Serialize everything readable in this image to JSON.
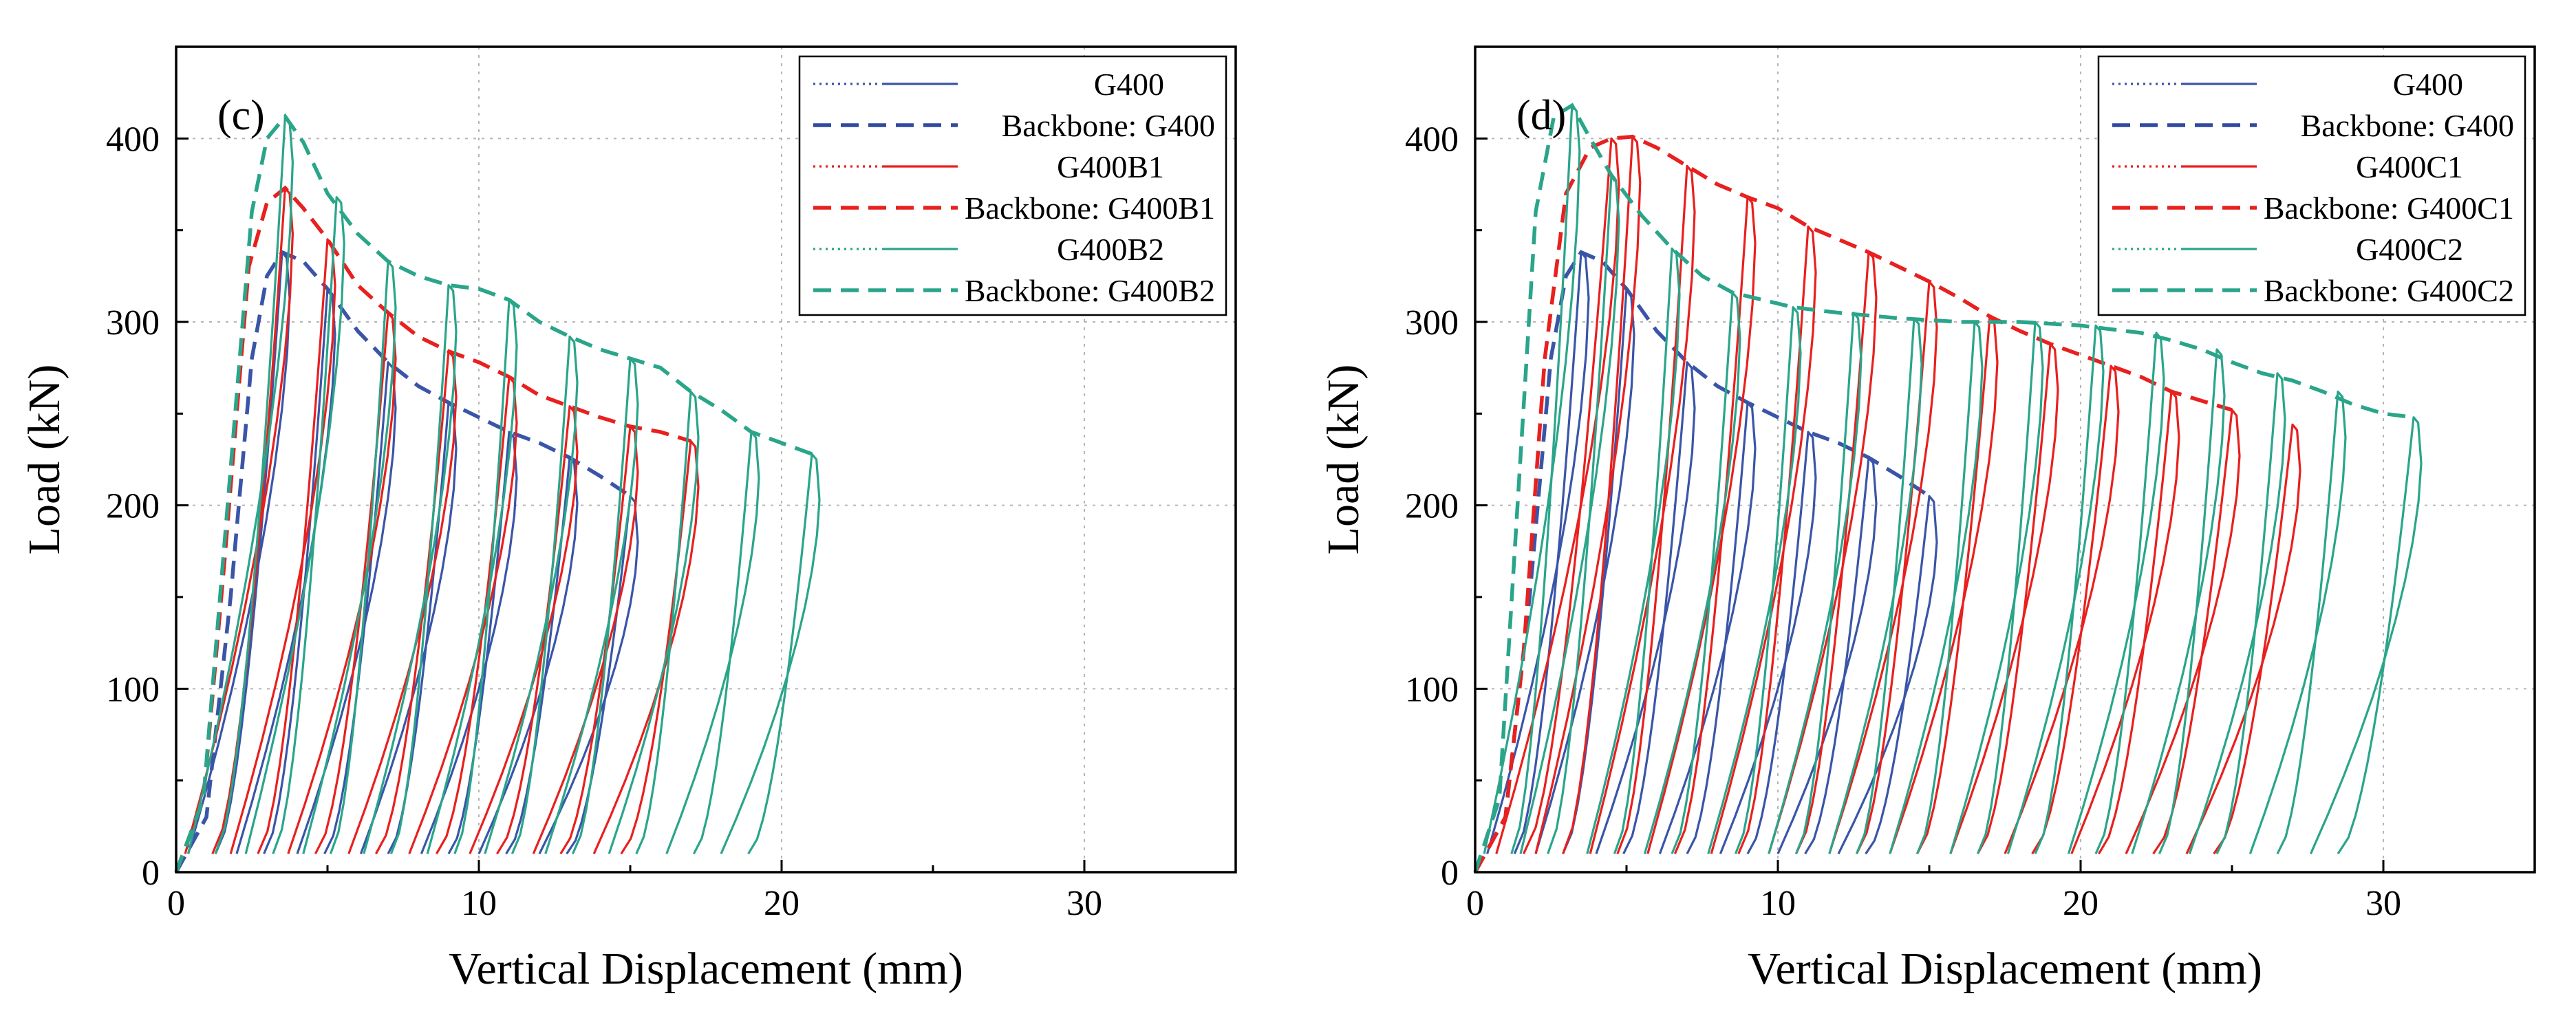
{
  "chart_data": [
    {
      "type": "line",
      "panel_label": "(c)",
      "xlabel": "Vertical Displacement (mm)",
      "ylabel": "Load (kN)",
      "xlim": [
        0,
        35
      ],
      "ylim": [
        0,
        450
      ],
      "xticks": [
        0,
        10,
        20,
        30
      ],
      "yticks": [
        0,
        100,
        200,
        300,
        400
      ],
      "grid": true,
      "legend_position": "top-right",
      "legend": [
        {
          "label": "G400",
          "style": "dotted+solid",
          "color": "#3a55a8"
        },
        {
          "label": "Backbone: G400",
          "style": "dashed",
          "color": "#2f4a9e"
        },
        {
          "label": "G400B1",
          "style": "dotted+solid",
          "color": "#e8201e"
        },
        {
          "label": "Backbone: G400B1",
          "style": "dashed",
          "color": "#e8201e"
        },
        {
          "label": "G400B2",
          "style": "dotted+solid",
          "color": "#2aa58a"
        },
        {
          "label": "Backbone: G400B2",
          "style": "dashed",
          "color": "#2aa58a"
        }
      ],
      "series": [
        {
          "name": "G400",
          "color": "#3a55a8",
          "backbone": [
            [
              0,
              0
            ],
            [
              1.0,
              30
            ],
            [
              1.8,
              150
            ],
            [
              2.5,
              280
            ],
            [
              3.0,
              325
            ],
            [
              3.5,
              338
            ],
            [
              4.2,
              333
            ],
            [
              5.0,
              318
            ],
            [
              6.0,
              295
            ],
            [
              7.0,
              278
            ],
            [
              8.0,
              265
            ],
            [
              9.0,
              256
            ],
            [
              10.0,
              248
            ],
            [
              11.0,
              240
            ],
            [
              12.0,
              234
            ],
            [
              13.0,
              226
            ],
            [
              14.0,
              216
            ],
            [
              15.0,
              205
            ]
          ],
          "loops": [
            [
              1.3,
              3.5,
              338
            ],
            [
              2.9,
              5.0,
              318
            ],
            [
              4.9,
              7.0,
              278
            ],
            [
              7.0,
              9.0,
              256
            ],
            [
              9.0,
              11.0,
              240
            ],
            [
              10.9,
              13.0,
              226
            ],
            [
              12.9,
              15.0,
              205
            ]
          ]
        },
        {
          "name": "G400B1",
          "color": "#e8201e",
          "backbone": [
            [
              0,
              0
            ],
            [
              0.9,
              40
            ],
            [
              1.6,
              170
            ],
            [
              2.4,
              330
            ],
            [
              3.0,
              365
            ],
            [
              3.6,
              373
            ],
            [
              4.2,
              362
            ],
            [
              5.0,
              345
            ],
            [
              6.0,
              320
            ],
            [
              7.0,
              305
            ],
            [
              8.0,
              292
            ],
            [
              9.0,
              284
            ],
            [
              10.0,
              278
            ],
            [
              11.0,
              270
            ],
            [
              12.0,
              260
            ],
            [
              13.0,
              254
            ],
            [
              14.0,
              248
            ],
            [
              15.0,
              243
            ],
            [
              16.0,
              240
            ],
            [
              17.0,
              235
            ]
          ],
          "loops": [
            [
              1.2,
              3.6,
              373
            ],
            [
              2.7,
              5.0,
              345
            ],
            [
              4.6,
              7.0,
              305
            ],
            [
              6.6,
              9.0,
              284
            ],
            [
              8.6,
              11.0,
              270
            ],
            [
              10.6,
              13.0,
              254
            ],
            [
              12.7,
              15.0,
              243
            ],
            [
              14.7,
              17.0,
              235
            ]
          ]
        },
        {
          "name": "G400B2",
          "color": "#2aa58a",
          "backbone": [
            [
              0,
              0
            ],
            [
              0.9,
              40
            ],
            [
              1.7,
              200
            ],
            [
              2.5,
              360
            ],
            [
              3.0,
              400
            ],
            [
              3.6,
              412
            ],
            [
              4.2,
              398
            ],
            [
              5.0,
              370
            ],
            [
              6.0,
              348
            ],
            [
              7.0,
              333
            ],
            [
              8.0,
              325
            ],
            [
              9.0,
              320
            ],
            [
              10.0,
              318
            ],
            [
              11.0,
              312
            ],
            [
              12.0,
              300
            ],
            [
              13.0,
              292
            ],
            [
              14.0,
              285
            ],
            [
              15.0,
              280
            ],
            [
              16.0,
              275
            ],
            [
              17.0,
              262
            ],
            [
              18.0,
              252
            ],
            [
              19.0,
              240
            ],
            [
              20.0,
              234
            ],
            [
              21.0,
              228
            ]
          ],
          "loops": [
            [
              1.3,
              3.6,
              412
            ],
            [
              3.2,
              5.3,
              368
            ],
            [
              5.1,
              7.0,
              333
            ],
            [
              7.1,
              9.0,
              320
            ],
            [
              9.2,
              11.0,
              312
            ],
            [
              11.1,
              13.0,
              292
            ],
            [
              13.1,
              15.0,
              280
            ],
            [
              15.2,
              17.0,
              262
            ],
            [
              17.1,
              19.0,
              240
            ],
            [
              18.9,
              21.0,
              228
            ]
          ]
        }
      ]
    },
    {
      "type": "line",
      "panel_label": "(d)",
      "xlabel": "Vertical Displacement (mm)",
      "ylabel": "Load (kN)",
      "xlim": [
        0,
        35
      ],
      "ylim": [
        0,
        450
      ],
      "xticks": [
        0,
        10,
        20,
        30
      ],
      "yticks": [
        0,
        100,
        200,
        300,
        400
      ],
      "grid": true,
      "legend_position": "top-right",
      "legend": [
        {
          "label": "G400",
          "style": "dotted+solid",
          "color": "#3a55a8"
        },
        {
          "label": "Backbone: G400",
          "style": "dashed",
          "color": "#2f4a9e"
        },
        {
          "label": "G400C1",
          "style": "dotted+solid",
          "color": "#e8201e"
        },
        {
          "label": "Backbone: G400C1",
          "style": "dashed",
          "color": "#e8201e"
        },
        {
          "label": "G400C2",
          "style": "dotted+solid",
          "color": "#2aa58a"
        },
        {
          "label": "Backbone: G400C2",
          "style": "dashed",
          "color": "#2aa58a"
        }
      ],
      "series": [
        {
          "name": "G400",
          "color": "#3a55a8",
          "backbone": [
            [
              0,
              0
            ],
            [
              1.0,
              30
            ],
            [
              1.8,
              150
            ],
            [
              2.5,
              280
            ],
            [
              3.0,
              325
            ],
            [
              3.5,
              338
            ],
            [
              4.2,
              333
            ],
            [
              5.0,
              318
            ],
            [
              6.0,
              295
            ],
            [
              7.0,
              278
            ],
            [
              8.0,
              265
            ],
            [
              9.0,
              256
            ],
            [
              10.0,
              248
            ],
            [
              11.0,
              240
            ],
            [
              12.0,
              234
            ],
            [
              13.0,
              226
            ],
            [
              14.0,
              216
            ],
            [
              15.0,
              205
            ]
          ],
          "loops": [
            [
              1.3,
              3.5,
              338
            ],
            [
              2.9,
              5.0,
              318
            ],
            [
              4.9,
              7.0,
              278
            ],
            [
              7.0,
              9.0,
              256
            ],
            [
              9.0,
              11.0,
              240
            ],
            [
              10.9,
              13.0,
              226
            ],
            [
              12.9,
              15.0,
              205
            ]
          ]
        },
        {
          "name": "G400C1",
          "color": "#e8201e",
          "backbone": [
            [
              0,
              0
            ],
            [
              1.0,
              30
            ],
            [
              1.6,
              120
            ],
            [
              2.3,
              280
            ],
            [
              3.0,
              370
            ],
            [
              3.8,
              395
            ],
            [
              4.5,
              400
            ],
            [
              5.2,
              401
            ],
            [
              6.0,
              395
            ],
            [
              7.0,
              385
            ],
            [
              8.0,
              375
            ],
            [
              9.0,
              368
            ],
            [
              10.0,
              362
            ],
            [
              11.0,
              352
            ],
            [
              12.0,
              345
            ],
            [
              13.0,
              338
            ],
            [
              14.0,
              330
            ],
            [
              15.0,
              322
            ],
            [
              16.0,
              313
            ],
            [
              17.0,
              303
            ],
            [
              18.0,
              295
            ],
            [
              19.0,
              288
            ],
            [
              20.0,
              282
            ],
            [
              21.0,
              276
            ],
            [
              22.0,
              270
            ],
            [
              23.0,
              262
            ],
            [
              24.0,
              257
            ],
            [
              25.0,
              252
            ]
          ],
          "loops": [
            [
              1.6,
              4.5,
              400
            ],
            [
              2.9,
              5.2,
              401
            ],
            [
              4.7,
              7.0,
              385
            ],
            [
              6.6,
              9.0,
              368
            ],
            [
              8.7,
              11.0,
              352
            ],
            [
              10.6,
              13.0,
              338
            ],
            [
              12.6,
              15.0,
              322
            ],
            [
              14.6,
              17.0,
              303
            ],
            [
              16.6,
              19.0,
              288
            ],
            [
              18.4,
              21.0,
              276
            ],
            [
              20.6,
              23.0,
              262
            ],
            [
              22.4,
              25.0,
              252
            ],
            [
              24.4,
              27.0,
              244
            ]
          ]
        },
        {
          "name": "G400C2",
          "color": "#2aa58a",
          "backbone": [
            [
              0,
              0
            ],
            [
              0.8,
              40
            ],
            [
              1.4,
              200
            ],
            [
              2.0,
              360
            ],
            [
              2.6,
              412
            ],
            [
              3.2,
              418
            ],
            [
              3.8,
              400
            ],
            [
              4.5,
              380
            ],
            [
              5.5,
              358
            ],
            [
              6.5,
              340
            ],
            [
              7.5,
              325
            ],
            [
              8.5,
              316
            ],
            [
              9.5,
              312
            ],
            [
              10.5,
              308
            ],
            [
              12.0,
              305
            ],
            [
              14.0,
              302
            ],
            [
              16.0,
              300
            ],
            [
              18.0,
              300
            ],
            [
              20.0,
              298
            ],
            [
              22.0,
              294
            ],
            [
              23.0,
              290
            ],
            [
              24.0,
              285
            ],
            [
              25.0,
              278
            ],
            [
              26.0,
              272
            ],
            [
              27.0,
              268
            ],
            [
              28.0,
              262
            ],
            [
              29.0,
              255
            ],
            [
              30.0,
              250
            ],
            [
              31.0,
              248
            ]
          ],
          "loops": [
            [
              1.2,
              3.2,
              418
            ],
            [
              2.4,
              4.5,
              380
            ],
            [
              4.6,
              6.5,
              340
            ],
            [
              6.5,
              8.5,
              316
            ],
            [
              8.6,
              10.5,
              308
            ],
            [
              10.6,
              12.5,
              305
            ],
            [
              12.6,
              14.5,
              302
            ],
            [
              14.6,
              16.5,
              300
            ],
            [
              16.6,
              18.5,
              300
            ],
            [
              18.5,
              20.5,
              298
            ],
            [
              20.5,
              22.5,
              294
            ],
            [
              22.6,
              24.5,
              285
            ],
            [
              24.5,
              26.5,
              272
            ],
            [
              26.5,
              28.5,
              262
            ],
            [
              28.5,
              31.0,
              248
            ]
          ]
        }
      ]
    }
  ]
}
